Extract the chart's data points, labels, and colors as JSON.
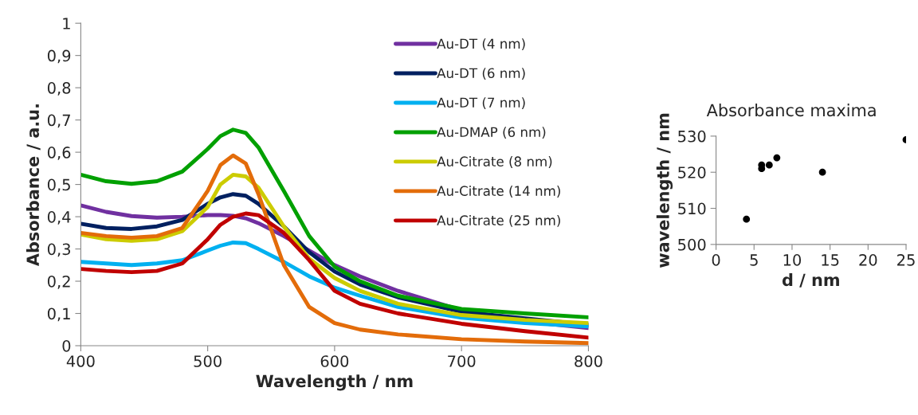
{
  "chart_data": [
    {
      "type": "line",
      "xlabel": "Wavelength / nm",
      "ylabel": "Absorbance / a.u.",
      "xlim": [
        400,
        800
      ],
      "xticks": [
        400,
        500,
        600,
        700,
        800
      ],
      "ylim": [
        0,
        1
      ],
      "yticks": [
        {
          "value": 0,
          "label": "0"
        },
        {
          "value": 0.1,
          "label": "0,1"
        },
        {
          "value": 0.2,
          "label": "0,2"
        },
        {
          "value": 0.3,
          "label": "0,3"
        },
        {
          "value": 0.4,
          "label": "0,4"
        },
        {
          "value": 0.5,
          "label": "0,5"
        },
        {
          "value": 0.6,
          "label": "0,6"
        },
        {
          "value": 0.7,
          "label": "0,7"
        },
        {
          "value": 0.8,
          "label": "0,8"
        },
        {
          "value": 0.9,
          "label": "0,9"
        },
        {
          "value": 1,
          "label": "1"
        }
      ],
      "x": [
        400,
        420,
        440,
        460,
        480,
        500,
        510,
        520,
        530,
        540,
        560,
        580,
        600,
        620,
        650,
        700,
        750,
        800
      ],
      "series": [
        {
          "name": "Au-DT (4 nm)",
          "color": "#7030a0",
          "values": [
            0.435,
            0.415,
            0.402,
            0.397,
            0.4,
            0.405,
            0.405,
            0.403,
            0.395,
            0.38,
            0.34,
            0.295,
            0.25,
            0.215,
            0.17,
            0.11,
            0.075,
            0.055
          ]
        },
        {
          "name": "Au-DT (6 nm)",
          "color": "#002060",
          "values": [
            0.378,
            0.365,
            0.362,
            0.37,
            0.39,
            0.44,
            0.46,
            0.47,
            0.465,
            0.44,
            0.37,
            0.29,
            0.23,
            0.19,
            0.15,
            0.105,
            0.085,
            0.065
          ]
        },
        {
          "name": "Au-DT (7 nm)",
          "color": "#00b0f0",
          "values": [
            0.26,
            0.255,
            0.25,
            0.255,
            0.265,
            0.295,
            0.31,
            0.32,
            0.318,
            0.3,
            0.26,
            0.215,
            0.18,
            0.155,
            0.12,
            0.087,
            0.07,
            0.06
          ]
        },
        {
          "name": "Au-DMAP (6 nm)",
          "color": "#00a000",
          "values": [
            0.53,
            0.51,
            0.502,
            0.51,
            0.54,
            0.61,
            0.65,
            0.67,
            0.66,
            0.615,
            0.48,
            0.34,
            0.245,
            0.2,
            0.155,
            0.114,
            0.1,
            0.088
          ]
        },
        {
          "name": "Au-Citrate (8 nm)",
          "color": "#cccc00",
          "values": [
            0.345,
            0.33,
            0.325,
            0.33,
            0.355,
            0.43,
            0.5,
            0.53,
            0.525,
            0.49,
            0.37,
            0.27,
            0.21,
            0.17,
            0.13,
            0.095,
            0.08,
            0.07
          ]
        },
        {
          "name": "Au-Citrate (14 nm)",
          "color": "#e36c0a",
          "values": [
            0.35,
            0.34,
            0.335,
            0.34,
            0.365,
            0.48,
            0.56,
            0.59,
            0.565,
            0.47,
            0.25,
            0.12,
            0.07,
            0.05,
            0.035,
            0.02,
            0.013,
            0.008
          ]
        },
        {
          "name": "Au-Citrate (25 nm)",
          "color": "#c00000",
          "values": [
            0.238,
            0.232,
            0.228,
            0.232,
            0.255,
            0.33,
            0.375,
            0.4,
            0.41,
            0.405,
            0.35,
            0.265,
            0.17,
            0.13,
            0.1,
            0.068,
            0.045,
            0.025
          ]
        }
      ],
      "legend": "top right",
      "grid": false,
      "marker": "none",
      "line_style": "solid"
    },
    {
      "type": "scatter",
      "title": "Absorbance maxima",
      "xlabel": "d / nm",
      "ylabel": "wavelength / nm",
      "xlim": [
        0,
        25
      ],
      "xticks": [
        0,
        5,
        10,
        15,
        20,
        25
      ],
      "ylim": [
        500,
        530
      ],
      "yticks": [
        500,
        510,
        520,
        530
      ],
      "x": [
        4,
        6,
        6,
        7,
        8,
        14,
        25
      ],
      "series": [
        {
          "color": "#000000",
          "values": [
            507,
            522,
            521,
            522,
            524,
            520,
            529
          ]
        }
      ],
      "grid": false,
      "marker": "circle"
    }
  ]
}
